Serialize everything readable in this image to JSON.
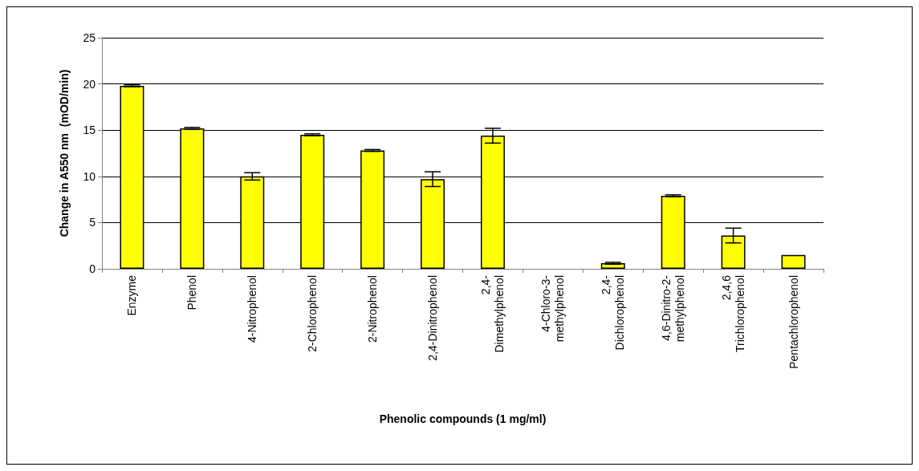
{
  "chart_data": {
    "type": "bar",
    "xlabel": "Phenolic compounds (1 mg/ml)",
    "ylabel": "Change in A550 nm  (mOD/min)",
    "categories": [
      "Enzyme",
      "Phenol",
      "4-Nitrophenol",
      "2-Chlorophenol",
      "2-Nitrophenol",
      "2,4-Dinitrophenol",
      "2,4-\nDimethylphenol",
      "4-Chloro-3-\nmethylphenol",
      "2,4-\nDichlorophenol",
      "4,6-Dinitro-2-\nmethylphenol",
      "2,4,6\nTrichlorophenol",
      "Pentachlorophenol"
    ],
    "values": [
      19.8,
      15.2,
      10.0,
      14.5,
      12.8,
      9.7,
      14.4,
      0,
      0.6,
      7.9,
      3.6,
      1.5
    ],
    "errors": [
      0.1,
      0.1,
      0.4,
      0.1,
      0.1,
      0.8,
      0.8,
      null,
      0.1,
      0.1,
      0.8,
      null
    ],
    "color": "#ffff00",
    "ylim": [
      0,
      25
    ],
    "yticks": [
      0,
      5,
      10,
      15,
      20,
      25
    ],
    "grid": "y"
  }
}
